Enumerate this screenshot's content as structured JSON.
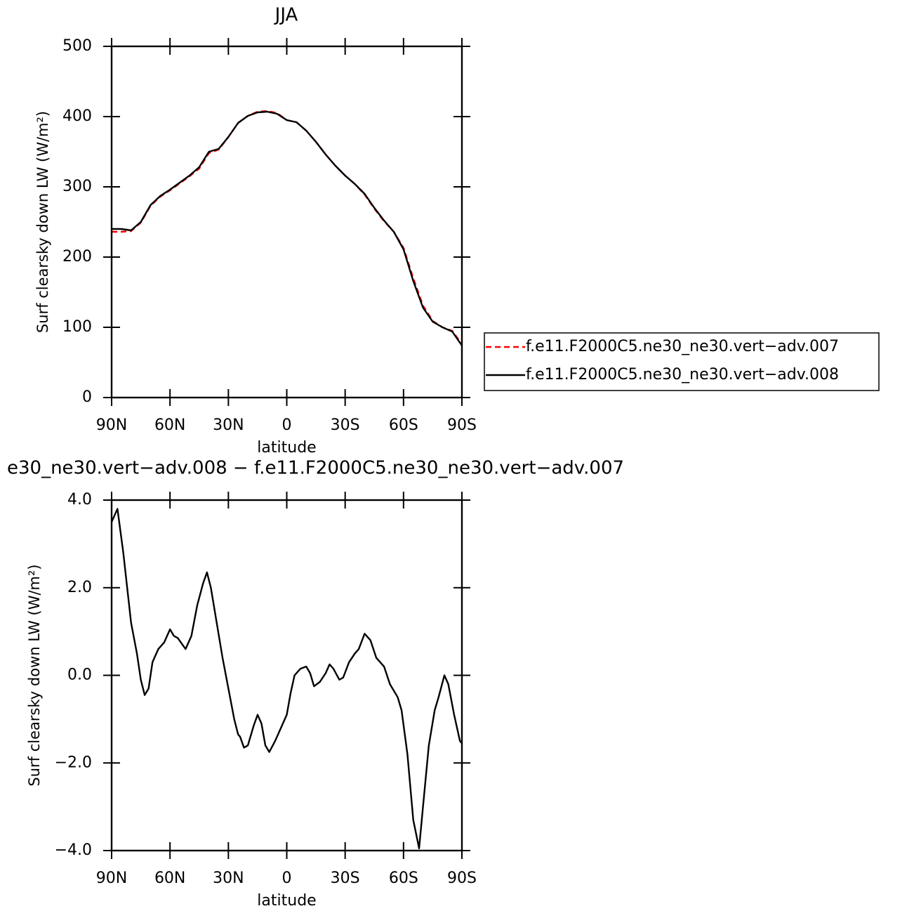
{
  "chart_data": [
    {
      "type": "line",
      "title": "JJA",
      "xlabel": "latitude",
      "ylabel": "Surf clearsky down LW (W/m²)",
      "x": [
        90,
        85,
        80,
        75,
        70,
        65,
        60,
        55,
        50,
        45,
        40,
        35,
        30,
        25,
        20,
        15,
        10,
        5,
        0,
        -5,
        -10,
        -15,
        -20,
        -25,
        -30,
        -35,
        -40,
        -45,
        -50,
        -55,
        -60,
        -65,
        -70,
        -75,
        -80,
        -85,
        -90
      ],
      "series": [
        {
          "name": "f.e11.F2000C5.ne30_ne30.vert−adv.007",
          "color": "#ff0000",
          "style": "dashed",
          "values": [
            236,
            236,
            237,
            249,
            273,
            286,
            295,
            305,
            315,
            326,
            348,
            353,
            371,
            391,
            401,
            407,
            408,
            405,
            395,
            392,
            380,
            364,
            346,
            330,
            316,
            304,
            289,
            269,
            251,
            236,
            213,
            170,
            131,
            109,
            100,
            95,
            76
          ]
        },
        {
          "name": "f.e11.F2000C5.ne30_ne30.vert−adv.008",
          "color": "#000000",
          "style": "solid",
          "values": [
            240,
            240,
            238,
            250,
            274,
            287,
            296,
            306,
            316,
            328,
            350,
            354,
            371,
            391,
            401,
            406,
            407,
            404,
            395,
            392,
            380,
            364,
            346,
            330,
            316,
            304,
            290,
            270,
            252,
            236,
            211,
            166,
            128,
            108,
            100,
            94,
            74
          ]
        }
      ],
      "xlim": [
        90,
        -90
      ],
      "xticks": [
        {
          "value": 90,
          "label": "90N"
        },
        {
          "value": 60,
          "label": "60N"
        },
        {
          "value": 30,
          "label": "30N"
        },
        0,
        {
          "value": -30,
          "label": "30S"
        },
        {
          "value": -60,
          "label": "60S"
        },
        {
          "value": -90,
          "label": "90S"
        }
      ],
      "ylim": [
        0,
        500
      ],
      "yticks": [
        0,
        100,
        200,
        300,
        400,
        500
      ],
      "legend": "right"
    },
    {
      "type": "line",
      "title": "e30_ne30.vert−adv.008 − f.e11.F2000C5.ne30_ne30.vert−adv.007",
      "xlabel": "latitude",
      "ylabel": "Surf clearsky down LW (W/m²)",
      "x": [
        90,
        87,
        84,
        80,
        77,
        75,
        73,
        71,
        69,
        66,
        63,
        60,
        58,
        56,
        52,
        49,
        46,
        43,
        41,
        39,
        36,
        33,
        30,
        27,
        25,
        24,
        22,
        20,
        17,
        15,
        13,
        11,
        9,
        6,
        3,
        0,
        -2,
        -4,
        -7,
        -10,
        -12,
        -14,
        -17,
        -20,
        -22,
        -24,
        -27,
        -29,
        -32,
        -35,
        -37,
        -40,
        -43,
        -46,
        -50,
        -53,
        -57,
        -59,
        -62,
        -65,
        -68,
        -70,
        -73,
        -76,
        -78,
        -81,
        -83,
        -86,
        -89,
        -90
      ],
      "series": [
        {
          "color": "#000000",
          "style": "solid",
          "values": [
            3.5,
            3.8,
            2.8,
            1.2,
            0.5,
            -0.1,
            -0.45,
            -0.3,
            0.3,
            0.6,
            0.75,
            1.05,
            0.9,
            0.85,
            0.6,
            0.9,
            1.6,
            2.1,
            2.35,
            2.0,
            1.2,
            0.4,
            -0.3,
            -1.0,
            -1.35,
            -1.4,
            -1.65,
            -1.6,
            -1.15,
            -0.9,
            -1.1,
            -1.6,
            -1.75,
            -1.5,
            -1.2,
            -0.9,
            -0.4,
            0.0,
            0.15,
            0.2,
            0.05,
            -0.25,
            -0.15,
            0.05,
            0.25,
            0.15,
            -0.1,
            -0.05,
            0.3,
            0.5,
            0.6,
            0.95,
            0.8,
            0.4,
            0.2,
            -0.2,
            -0.5,
            -0.8,
            -1.8,
            -3.3,
            -3.95,
            -3.0,
            -1.6,
            -0.8,
            -0.5,
            0.0,
            -0.2,
            -0.9,
            -1.5,
            -1.55
          ]
        }
      ],
      "xlim": [
        90,
        -90
      ],
      "xticks": [
        {
          "value": 90,
          "label": "90N"
        },
        {
          "value": 60,
          "label": "60N"
        },
        {
          "value": 30,
          "label": "30N"
        },
        0,
        {
          "value": -30,
          "label": "30S"
        },
        {
          "value": -60,
          "label": "60S"
        },
        {
          "value": -90,
          "label": "90S"
        }
      ],
      "ylim": [
        -4,
        4
      ],
      "yticks": [
        {
          "value": -4,
          "label": "−4.0"
        },
        {
          "value": -2,
          "label": "−2.0"
        },
        {
          "value": 0,
          "label": "0.0"
        },
        {
          "value": 2,
          "label": "2.0"
        },
        {
          "value": 4,
          "label": "4.0"
        }
      ]
    }
  ]
}
